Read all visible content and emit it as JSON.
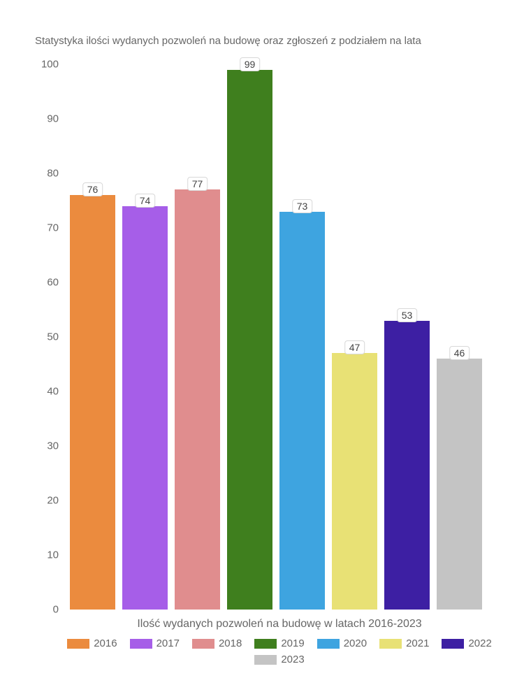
{
  "chart": {
    "type": "bar",
    "title": "Statystyka ilości wydanych pozwoleń na budowę oraz zgłoszeń z podziałem na lata",
    "title_fontsize": 15,
    "title_color": "#666666",
    "xlabel": "Ilość wydanych pozwoleń na budowę w latach 2016-2023",
    "xlabel_fontsize": 16,
    "ylim": [
      0,
      100
    ],
    "yticks": [
      0,
      10,
      20,
      30,
      40,
      50,
      60,
      70,
      80,
      90,
      100
    ],
    "ytick_fontsize": 15,
    "ytick_color": "#666666",
    "background_color": "#ffffff",
    "bar_gap": 10,
    "data_label_bg": "#ffffff",
    "data_label_border": "#d8d8d8",
    "series": [
      {
        "year": "2016",
        "value": 76,
        "color": "#eb8b3e"
      },
      {
        "year": "2017",
        "value": 74,
        "color": "#a65ee8"
      },
      {
        "year": "2018",
        "value": 77,
        "color": "#e08d8e"
      },
      {
        "year": "2019",
        "value": 99,
        "color": "#3f7f1e"
      },
      {
        "year": "2020",
        "value": 73,
        "color": "#3ea4e0"
      },
      {
        "year": "2021",
        "value": 47,
        "color": "#e8e175"
      },
      {
        "year": "2022",
        "value": 53,
        "color": "#3d1fa3"
      },
      {
        "year": "2023",
        "value": 46,
        "color": "#c4c4c4"
      }
    ]
  }
}
